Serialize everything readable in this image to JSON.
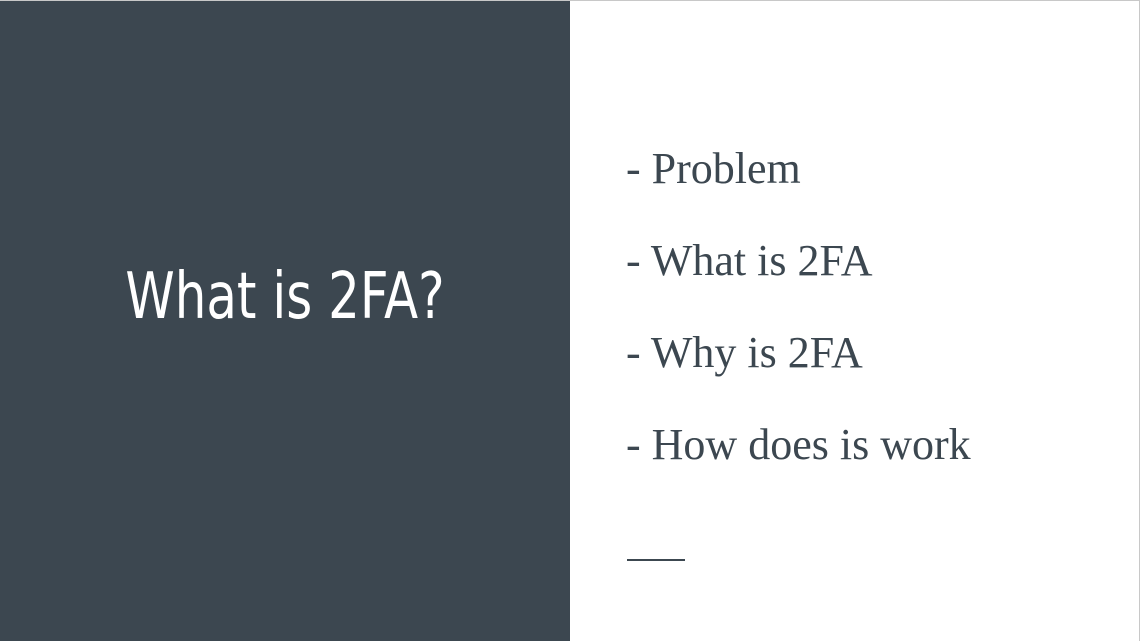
{
  "slide": {
    "title": "What is 2FA?",
    "bullets": [
      "- Problem",
      "- What is 2FA",
      "- Why is 2FA",
      "- How does is work"
    ]
  },
  "colors": {
    "panel": "#3c4750",
    "text_dark": "#3c4750",
    "title_text": "#ffffff",
    "background": "#ffffff"
  }
}
